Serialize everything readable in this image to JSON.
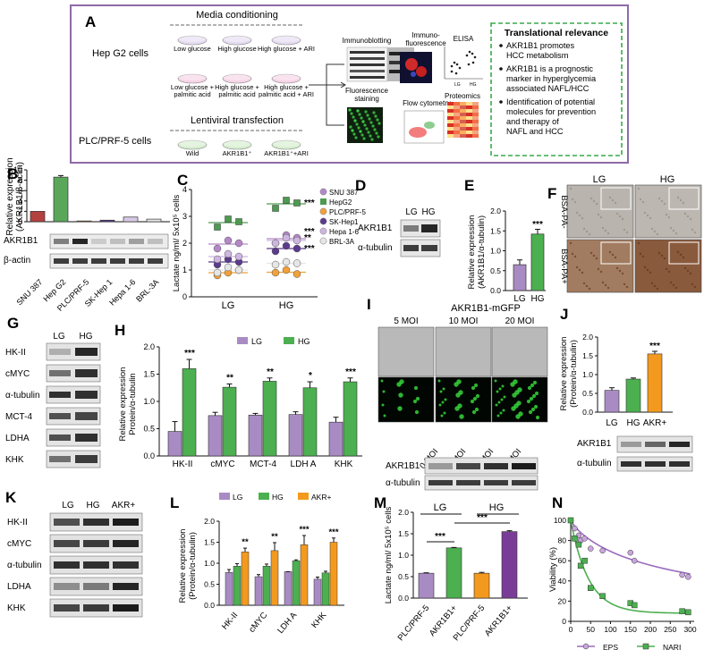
{
  "panelA": {
    "letter": "A",
    "media_title": "Media conditioning",
    "hepg2_label": "Hep G2 cells",
    "dishes_row1": [
      "Low glucose",
      "High glucose",
      "High glucose + ARI"
    ],
    "dishes_row2": [
      "Low glucose +\npalmitic acid",
      "High glucose +\npalmitic acid",
      "High glucose +\npalmitic acid + ARI"
    ],
    "lenti_title": "Lentiviral transfection",
    "plc_label": "PLC/PRF-5 cells",
    "dishes_row3": [
      "Wild",
      "AKR1B1⁺",
      "AKR1B1⁺+ARI"
    ],
    "methods": [
      "Immunoblotting",
      "Immuno-\nfluorescence",
      "ELISA",
      "Fluorescence\nstaining",
      "Flow cytometry",
      "Proteomics"
    ],
    "elisa_axis": [
      "LG",
      "HG"
    ],
    "relevance_title": "Translational relevance",
    "relevance_items": [
      "AKR1B1 promotes\nHCC metabolism",
      "AKR1B1 is a prognostic\nmarker in hyperglycemia\nassociated NAFL/HCC",
      "Identification of potential\nmolecules for prevention\nand therapy of\nNAFL and HCC"
    ]
  },
  "colors": {
    "purple": "#a98bc4",
    "green": "#4caf50",
    "orange": "#f39a1e",
    "frame": "#8e6aa8",
    "dash_green": "#3aa84a"
  },
  "panelB": {
    "letter": "B",
    "ylabel": "Relative expression\n(AKR1B1/β-actin)",
    "ticks": [
      "0",
      "2",
      "4",
      "6",
      "8",
      "10"
    ],
    "blot_labels": [
      "AKR1B1",
      "β-actin"
    ]
  },
  "panelC": {
    "letter": "C",
    "ylabel": "Lactate ng/ml/ 5x10⁵ cells",
    "ticks": [
      "0",
      "1",
      "2",
      "3",
      "4"
    ],
    "xlabels": [
      "LG",
      "HG"
    ],
    "sig": [
      "***",
      "***",
      "**",
      "***"
    ]
  },
  "panelD": {
    "letter": "D",
    "lanes": [
      "LG",
      "HG"
    ],
    "rows": [
      "AKR1B1",
      "α-tubulin"
    ]
  },
  "panelE": {
    "letter": "E",
    "ylabel": "Relative expression\n(AKR1B1/α-tubulin)",
    "ticks": [
      "0.0",
      "0.5",
      "1.0",
      "1.5",
      "2.0"
    ],
    "sig": "***"
  },
  "panelF": {
    "letter": "F",
    "cols": [
      "LG",
      "HG"
    ],
    "rows": [
      "BSA-PA-",
      "BSA-PA+"
    ]
  },
  "panelG": {
    "letter": "G",
    "lanes": [
      "LG",
      "HG"
    ],
    "rows": [
      "HK-II",
      "cMYC",
      "α-tubulin",
      "MCT-4",
      "LDHA",
      "KHK"
    ]
  },
  "panelH": {
    "letter": "H",
    "ylabel": "Relative expression\nProtein/α-tubulin",
    "ticks": [
      "0.0",
      "0.5",
      "1.0",
      "1.5",
      "2.0"
    ],
    "legend": [
      "LG",
      "HG"
    ],
    "sig": [
      "***",
      "**",
      "**",
      "*",
      "***"
    ]
  },
  "panelI": {
    "letter": "I",
    "title": "AKR1B1-mGFP",
    "cols": [
      "5 MOI",
      "10 MOI",
      "20 MOI"
    ],
    "lanes": [
      "0 MOI",
      "5 MOI",
      "10 MOI",
      "20 MOI"
    ],
    "rows": [
      "AKR1B1",
      "α-tubulin"
    ]
  },
  "panelJ": {
    "letter": "J",
    "ylabel": "Relative expression\n(Protein/α-tubulin)",
    "ticks": [
      "0.0",
      "0.5",
      "1.0",
      "1.5",
      "2.0"
    ],
    "sig": "***",
    "rows": [
      "AKR1B1",
      "α-tubulin"
    ]
  },
  "panelK": {
    "letter": "K",
    "lanes": [
      "LG",
      "HG",
      "AKR+"
    ],
    "rows": [
      "HK-II",
      "cMYC",
      "α-tubulin",
      "LDHA",
      "KHK"
    ]
  },
  "panelL": {
    "letter": "L",
    "ylabel": "Relative expression\n(Protein/α-tubulin)",
    "ticks": [
      "0.0",
      "0.5",
      "1.0",
      "1.5",
      "2.0"
    ],
    "legend": [
      "LG",
      "HG",
      "AKR+"
    ],
    "sig": [
      "**",
      "**",
      "***",
      "***"
    ]
  },
  "panelM": {
    "letter": "M",
    "ylabel": "Lactate ng/ml/ 5x10⁵ cells",
    "ticks": [
      "0.0",
      "0.5",
      "1.0",
      "1.5",
      "2.0"
    ],
    "groups": [
      "LG",
      "HG"
    ],
    "sig": [
      "***",
      "***"
    ]
  },
  "panelN": {
    "letter": "N",
    "ylabel": "Viability (%)",
    "yticks": [
      "0",
      "20",
      "40",
      "60",
      "80",
      "100"
    ],
    "xticks": [
      "0",
      "50",
      "100",
      "150",
      "200",
      "250",
      "300"
    ],
    "legend": [
      "EPS",
      "NARI"
    ]
  },
  "chart_data": [
    {
      "id": "B",
      "type": "bar",
      "categories": [
        "SNU 387",
        "Hep G2",
        "PLC/PRF-5",
        "SK-Hep 1",
        "Hepa 1-6",
        "BRL-3A"
      ],
      "values": [
        2.0,
        8.6,
        0.15,
        0.3,
        0.9,
        0.5
      ],
      "ylim": [
        0,
        10
      ],
      "colors": [
        "#b3413f",
        "#5aa75a",
        "#e4922c",
        "#5c3d8c",
        "#d7c8e6",
        "#e8e8e8"
      ]
    },
    {
      "id": "C",
      "type": "scatter",
      "categories": [
        "LG",
        "HG"
      ],
      "series": [
        {
          "name": "SNU 387",
          "color": "#b388c8",
          "values": [
            [
              1.8,
              2.1,
              2.0
            ],
            [
              2.0,
              2.3,
              2.2
            ]
          ]
        },
        {
          "name": "HepG2",
          "color": "#4e9a51",
          "values": [
            [
              2.6,
              2.9,
              2.8
            ],
            [
              3.3,
              3.6,
              3.5
            ]
          ]
        },
        {
          "name": "PLC/PRF-5",
          "color": "#f0a13a",
          "values": [
            [
              0.8,
              0.9,
              1.0
            ],
            [
              0.9,
              1.0,
              0.85
            ]
          ]
        },
        {
          "name": "SK-Hep1",
          "color": "#5b3b8c",
          "values": [
            [
              1.2,
              1.4,
              1.3
            ],
            [
              1.7,
              1.9,
              1.8
            ]
          ]
        },
        {
          "name": "Hepa 1-6",
          "color": "#cdb6e0",
          "values": [
            [
              1.4,
              1.6,
              1.5
            ],
            [
              2.0,
              2.2,
              2.1
            ]
          ]
        },
        {
          "name": "BRL-3A",
          "color": "#e6e6e6",
          "values": [
            [
              0.9,
              1.1,
              1.0
            ],
            [
              1.2,
              1.3,
              1.25
            ]
          ]
        }
      ],
      "ylim": [
        0,
        4
      ]
    },
    {
      "id": "E",
      "type": "bar",
      "categories": [
        "LG",
        "HG"
      ],
      "values": [
        0.65,
        1.42
      ],
      "errors": [
        0.12,
        0.12
      ],
      "ylim": [
        0,
        2
      ]
    },
    {
      "id": "H",
      "type": "bar",
      "categories": [
        "HK-II",
        "cMYC",
        "MCT-4",
        "LDH A",
        "KHK"
      ],
      "series": [
        {
          "name": "LG",
          "values": [
            0.45,
            0.74,
            0.75,
            0.76,
            0.62
          ],
          "errors": [
            0.18,
            0.06,
            0.03,
            0.05,
            0.09
          ]
        },
        {
          "name": "HG",
          "values": [
            1.6,
            1.26,
            1.37,
            1.25,
            1.36
          ],
          "errors": [
            0.17,
            0.06,
            0.06,
            0.11,
            0.07
          ]
        }
      ],
      "ylim": [
        0,
        2
      ]
    },
    {
      "id": "J",
      "type": "bar",
      "categories": [
        "LG",
        "HG",
        "AKR+"
      ],
      "values": [
        0.58,
        0.88,
        1.55
      ],
      "errors": [
        0.07,
        0.03,
        0.07
      ],
      "ylim": [
        0,
        2
      ]
    },
    {
      "id": "L",
      "type": "bar",
      "categories": [
        "HK-II",
        "cMYC",
        "LDH A",
        "KHK"
      ],
      "series": [
        {
          "name": "LG",
          "values": [
            0.78,
            0.68,
            0.8,
            0.62
          ],
          "errors": [
            0.07,
            0.05,
            0.0,
            0.05
          ]
        },
        {
          "name": "HG",
          "values": [
            0.93,
            0.93,
            1.06,
            0.77
          ],
          "errors": [
            0.06,
            0.05,
            0.02,
            0.04
          ]
        },
        {
          "name": "AKR+",
          "values": [
            1.27,
            1.3,
            1.44,
            1.5
          ],
          "errors": [
            0.09,
            0.19,
            0.22,
            0.1
          ]
        }
      ],
      "ylim": [
        0,
        2
      ]
    },
    {
      "id": "M",
      "type": "bar",
      "categories": [
        "PLC/PRF-5",
        "AKR1B1+",
        "PLC/PRF-5",
        "AKR1B1+"
      ],
      "values": [
        0.58,
        1.17,
        0.58,
        1.55
      ],
      "errors": [
        0.01,
        0.01,
        0.02,
        0.02
      ],
      "colors": [
        "#a98bc4",
        "#4caf50",
        "#f39a1e",
        "#7a3d97"
      ],
      "ylim": [
        0,
        2
      ]
    },
    {
      "id": "N",
      "type": "scatter",
      "xlim": [
        0,
        310
      ],
      "ylim": [
        0,
        100
      ],
      "series": [
        {
          "name": "EPS",
          "color": "#9b6bbf",
          "x": [
            0,
            10,
            20,
            25,
            35,
            50,
            80,
            150,
            160,
            280,
            295
          ],
          "y": [
            100,
            92,
            85,
            80,
            82,
            72,
            70,
            68,
            60,
            46,
            44
          ]
        },
        {
          "name": "NARI",
          "color": "#4caf50",
          "x": [
            0,
            10,
            20,
            25,
            35,
            50,
            80,
            150,
            160,
            280,
            295
          ],
          "y": [
            100,
            82,
            76,
            55,
            60,
            33,
            25,
            18,
            16,
            10,
            9
          ]
        }
      ]
    }
  ]
}
